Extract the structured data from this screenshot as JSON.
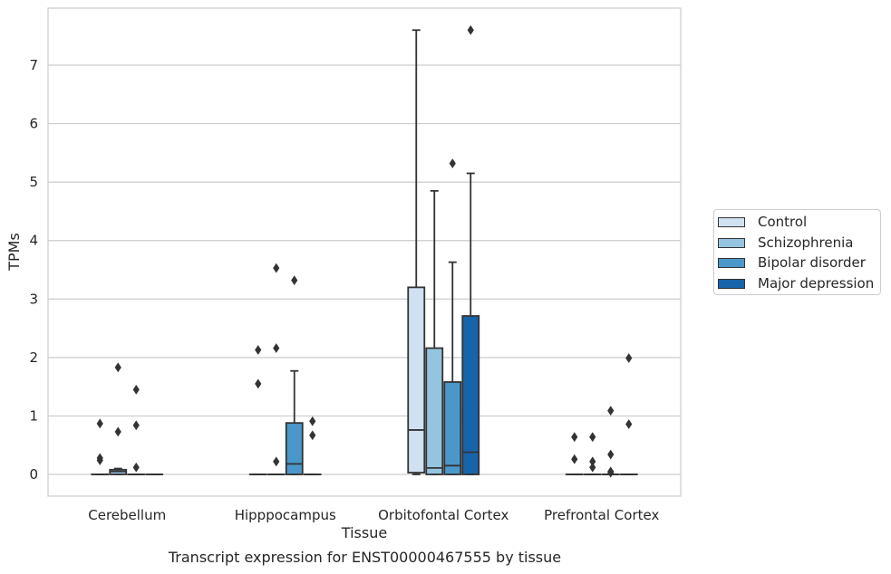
{
  "caption": "Transcript expression for ENST00000467555 by tissue",
  "chart_data": {
    "type": "boxplot",
    "title": "",
    "xlabel": "Tissue",
    "ylabel": "TPMs",
    "ylim": [
      -0.37,
      7.98
    ],
    "yticks": [
      0,
      1,
      2,
      3,
      4,
      5,
      6,
      7
    ],
    "grid": "horizontal",
    "legend_position": "right",
    "categories": [
      "Cerebellum",
      "Hipppocampus",
      "Orbitofontal Cortex",
      "Prefrontal Cortex"
    ],
    "series": [
      {
        "name": "Control",
        "color": "#d0e1f2"
      },
      {
        "name": "Schizophrenia",
        "color": "#94c4df"
      },
      {
        "name": "Bipolar disorder",
        "color": "#4a98c9"
      },
      {
        "name": "Major depression",
        "color": "#1764ab"
      }
    ],
    "boxes": [
      [
        {
          "q1": 0,
          "median": 0,
          "q3": 0,
          "whislo": 0,
          "whishi": 0,
          "fliers": [
            0.87,
            0.28,
            0.24
          ]
        },
        {
          "q1": 0,
          "median": 0.05,
          "q3": 0.08,
          "whislo": 0,
          "whishi": 0.1,
          "fliers": [
            1.83,
            0.73
          ]
        },
        {
          "q1": 0,
          "median": 0,
          "q3": 0,
          "whislo": 0,
          "whishi": 0,
          "fliers": [
            1.45,
            0.84,
            0.12
          ]
        },
        {
          "q1": 0,
          "median": 0,
          "q3": 0,
          "whislo": 0,
          "whishi": 0,
          "fliers": []
        }
      ],
      [
        {
          "q1": 0,
          "median": 0,
          "q3": 0,
          "whislo": 0,
          "whishi": 0,
          "fliers": [
            2.13,
            1.55
          ]
        },
        {
          "q1": 0,
          "median": 0,
          "q3": 0,
          "whislo": 0,
          "whishi": 0,
          "fliers": [
            3.53,
            2.16,
            0.22
          ]
        },
        {
          "q1": 0,
          "median": 0.18,
          "q3": 0.88,
          "whislo": 0,
          "whishi": 1.77,
          "fliers": [
            3.32
          ]
        },
        {
          "q1": 0,
          "median": 0,
          "q3": 0,
          "whislo": 0,
          "whishi": 0,
          "fliers": [
            0.91,
            0.67
          ]
        }
      ],
      [
        {
          "q1": 0.03,
          "median": 0.76,
          "q3": 3.2,
          "whislo": 0,
          "whishi": 7.6,
          "fliers": []
        },
        {
          "q1": 0,
          "median": 0.11,
          "q3": 2.16,
          "whislo": 0,
          "whishi": 4.85,
          "fliers": []
        },
        {
          "q1": 0,
          "median": 0.15,
          "q3": 1.58,
          "whislo": 0,
          "whishi": 3.63,
          "fliers": [
            5.32
          ]
        },
        {
          "q1": 0,
          "median": 0.38,
          "q3": 2.71,
          "whislo": 0,
          "whishi": 5.15,
          "fliers": [
            7.6
          ]
        }
      ],
      [
        {
          "q1": 0,
          "median": 0,
          "q3": 0,
          "whislo": 0,
          "whishi": 0,
          "fliers": [
            0.64,
            0.26
          ]
        },
        {
          "q1": 0,
          "median": 0,
          "q3": 0,
          "whislo": 0,
          "whishi": 0,
          "fliers": [
            0.64,
            0.22,
            0.12
          ]
        },
        {
          "q1": 0,
          "median": 0,
          "q3": 0,
          "whislo": 0,
          "whishi": 0,
          "fliers": [
            1.09,
            0.34,
            0.05,
            0.03
          ]
        },
        {
          "q1": 0,
          "median": 0,
          "q3": 0,
          "whislo": 0,
          "whishi": 0,
          "fliers": [
            1.99,
            0.86
          ]
        }
      ]
    ]
  }
}
